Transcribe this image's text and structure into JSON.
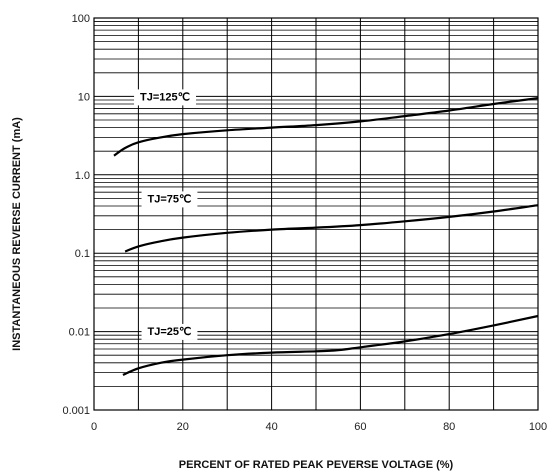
{
  "chart_data": {
    "type": "line",
    "title": "",
    "xlabel": "PERCENT OF RATED PEAK PEVERSE VOLTAGE (%)",
    "ylabel": "INSTANTANEOUS REVERSE CURRENT (mA)",
    "xlim": [
      0,
      100
    ],
    "ylim": [
      0.001,
      100
    ],
    "yscale": "log",
    "grid": true,
    "x_ticks": [
      0,
      20,
      40,
      60,
      80,
      100
    ],
    "x_tick_labels": [
      "0",
      "20",
      "40",
      "60",
      "80",
      "100"
    ],
    "y_ticks": [
      0.001,
      0.01,
      0.1,
      1,
      10,
      100
    ],
    "y_tick_labels": [
      "0.001",
      "0.01",
      "0.1",
      "1.0",
      "10",
      "100"
    ],
    "series": [
      {
        "name": "TJ=125℃",
        "label_x": 16,
        "label_y": 10,
        "x": [
          4.5,
          7,
          10,
          15,
          20,
          30,
          40,
          50,
          60,
          70,
          80,
          90,
          100
        ],
        "y": [
          1.75,
          2.2,
          2.6,
          3.0,
          3.3,
          3.7,
          4.0,
          4.3,
          4.8,
          5.6,
          6.6,
          8.0,
          9.5
        ]
      },
      {
        "name": "TJ=75℃",
        "label_x": 17,
        "label_y": 0.5,
        "x": [
          7,
          10,
          15,
          20,
          30,
          40,
          50,
          60,
          70,
          80,
          90,
          100
        ],
        "y": [
          0.105,
          0.122,
          0.142,
          0.158,
          0.182,
          0.2,
          0.212,
          0.228,
          0.255,
          0.29,
          0.34,
          0.41
        ]
      },
      {
        "name": "TJ=25℃",
        "label_x": 17,
        "label_y": 0.0102,
        "x": [
          6.5,
          10,
          15,
          20,
          30,
          40,
          50,
          55,
          60,
          70,
          80,
          90,
          100
        ],
        "y": [
          0.0028,
          0.0034,
          0.004,
          0.0044,
          0.005,
          0.0054,
          0.0056,
          0.0058,
          0.0063,
          0.0075,
          0.0093,
          0.012,
          0.0158
        ]
      }
    ]
  }
}
